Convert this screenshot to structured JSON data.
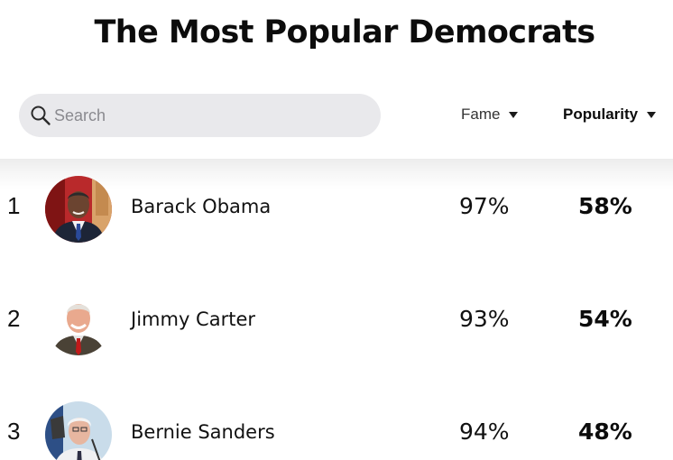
{
  "page": {
    "title": "The Most Popular Democrats"
  },
  "search": {
    "placeholder": "Search",
    "icon": "search-icon"
  },
  "sort": {
    "fame_label": "Fame",
    "popularity_label": "Popularity",
    "active": "Popularity"
  },
  "list": {
    "rows": [
      {
        "rank": "1",
        "name": "Barack Obama",
        "fame": "97%",
        "popularity": "58%"
      },
      {
        "rank": "2",
        "name": "Jimmy Carter",
        "fame": "93%",
        "popularity": "54%"
      },
      {
        "rank": "3",
        "name": "Bernie Sanders",
        "fame": "94%",
        "popularity": "48%"
      }
    ]
  }
}
